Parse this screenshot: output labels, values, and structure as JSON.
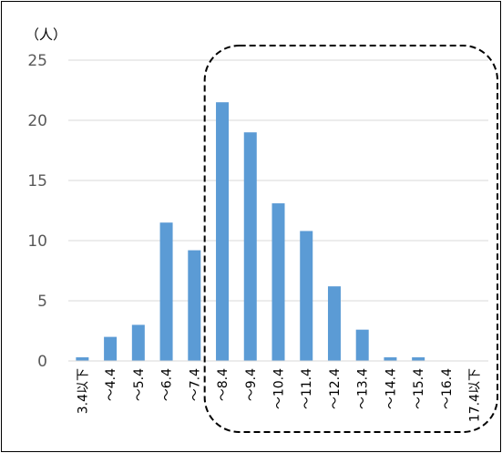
{
  "chart_data": {
    "type": "bar",
    "unit_label": "（人）",
    "categories": [
      "3.4以下",
      "～4.4",
      "～5.4",
      "～6.4",
      "～7.4",
      "～8.4",
      "～9.4",
      "～10.4",
      "～11.4",
      "～12.4",
      "～13.4",
      "～14.4",
      "～15.4",
      "～16.4",
      "17.4以下"
    ],
    "values": [
      0.3,
      2.0,
      3.0,
      11.5,
      9.2,
      21.5,
      19.0,
      13.1,
      10.8,
      6.2,
      2.6,
      0.3,
      0.3,
      0,
      0
    ],
    "ylim": [
      0,
      25
    ],
    "yticks": [
      "0",
      "5",
      "10",
      "15",
      "20",
      "25"
    ],
    "grid": true,
    "legend": "none",
    "highlight_region": {
      "style": "dashed rounded rectangle",
      "from_category": "～8.4",
      "to_category": "17.4以下"
    },
    "colors": {
      "bar": "#5B9BD5",
      "grid": "#D9D9D9",
      "frame": "#000000",
      "highlight": "#000000"
    }
  }
}
